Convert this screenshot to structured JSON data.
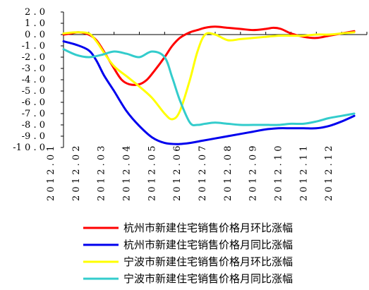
{
  "chart_data": {
    "type": "line",
    "x_categories": [
      "2012.01",
      "2012.02",
      "2012.03",
      "2012.04",
      "2012.05",
      "2012.06",
      "2012.07",
      "2012.08",
      "2012.09",
      "2012.10",
      "2012.11",
      "2012.12"
    ],
    "y_ticks": [
      "2.0",
      "1.0",
      "0.0",
      "-1.0",
      "-2.0",
      "-3.0",
      "-4.0",
      "-5.0",
      "-6.0",
      "-7.0",
      "-8.0",
      "-9.0",
      "-10.0"
    ],
    "ylim": [
      -10,
      2
    ],
    "grid": false,
    "legend_position": "bottom",
    "series": [
      {
        "name": "杭州市新建住宅销售价格月环比涨幅",
        "color": "#ff0000",
        "points": [
          [
            0,
            0.0
          ],
          [
            0.3,
            0.1
          ],
          [
            0.6,
            0.2
          ],
          [
            1.0,
            0.0
          ],
          [
            1.3,
            -0.5
          ],
          [
            1.6,
            -1.5
          ],
          [
            2.0,
            -3.0
          ],
          [
            2.3,
            -4.0
          ],
          [
            2.6,
            -4.4
          ],
          [
            3.0,
            -4.4
          ],
          [
            3.3,
            -4.0
          ],
          [
            3.6,
            -3.2
          ],
          [
            4.0,
            -2.0
          ],
          [
            4.3,
            -1.0
          ],
          [
            4.6,
            -0.3
          ],
          [
            5.0,
            0.2
          ],
          [
            5.3,
            0.4
          ],
          [
            5.6,
            0.6
          ],
          [
            6.0,
            0.7
          ],
          [
            6.5,
            0.6
          ],
          [
            7.0,
            0.5
          ],
          [
            7.5,
            0.4
          ],
          [
            8.0,
            0.5
          ],
          [
            8.3,
            0.6
          ],
          [
            8.6,
            0.5
          ],
          [
            9.0,
            0.1
          ],
          [
            9.5,
            -0.2
          ],
          [
            10.0,
            -0.3
          ],
          [
            10.5,
            -0.1
          ],
          [
            11.0,
            0.1
          ],
          [
            11.5,
            0.3
          ]
        ]
      },
      {
        "name": "杭州市新建住宅销售价格月同比涨幅",
        "color": "#0000ee",
        "points": [
          [
            0,
            -0.6
          ],
          [
            0.5,
            -0.9
          ],
          [
            1.0,
            -1.4
          ],
          [
            1.3,
            -2.3
          ],
          [
            1.6,
            -3.6
          ],
          [
            2.0,
            -5.0
          ],
          [
            2.5,
            -6.8
          ],
          [
            3.0,
            -8.1
          ],
          [
            3.5,
            -9.1
          ],
          [
            4.0,
            -9.6
          ],
          [
            4.5,
            -9.7
          ],
          [
            5.0,
            -9.6
          ],
          [
            5.5,
            -9.4
          ],
          [
            6.0,
            -9.2
          ],
          [
            6.5,
            -9.0
          ],
          [
            7.0,
            -8.8
          ],
          [
            7.5,
            -8.6
          ],
          [
            8.0,
            -8.4
          ],
          [
            8.5,
            -8.3
          ],
          [
            9.0,
            -8.3
          ],
          [
            9.5,
            -8.3
          ],
          [
            10.0,
            -8.3
          ],
          [
            10.5,
            -8.1
          ],
          [
            11.0,
            -7.7
          ],
          [
            11.5,
            -7.2
          ]
        ]
      },
      {
        "name": "宁波市新建住宅销售价格月环比涨幅",
        "color": "#ffff00",
        "points": [
          [
            0,
            0.1
          ],
          [
            0.5,
            0.2
          ],
          [
            1.0,
            0.1
          ],
          [
            1.3,
            -0.6
          ],
          [
            1.6,
            -1.6
          ],
          [
            2.0,
            -2.8
          ],
          [
            2.5,
            -3.7
          ],
          [
            3.0,
            -4.6
          ],
          [
            3.5,
            -5.6
          ],
          [
            4.0,
            -7.0
          ],
          [
            4.3,
            -7.5
          ],
          [
            4.6,
            -6.8
          ],
          [
            5.0,
            -4.0
          ],
          [
            5.3,
            -1.5
          ],
          [
            5.6,
            0.0
          ],
          [
            6.0,
            0.0
          ],
          [
            6.5,
            -0.5
          ],
          [
            7.0,
            -0.4
          ],
          [
            7.5,
            -0.3
          ],
          [
            8.0,
            -0.2
          ],
          [
            8.5,
            -0.1
          ],
          [
            9.0,
            -0.1
          ],
          [
            9.5,
            -0.1
          ],
          [
            10.0,
            0.0
          ],
          [
            10.5,
            0.0
          ],
          [
            11.0,
            0.1
          ],
          [
            11.5,
            0.2
          ]
        ]
      },
      {
        "name": "宁波市新建住宅销售价格月同比涨幅",
        "color": "#33cccc",
        "points": [
          [
            0,
            -1.3
          ],
          [
            0.5,
            -1.8
          ],
          [
            1.0,
            -2.0
          ],
          [
            1.5,
            -1.8
          ],
          [
            2.0,
            -1.5
          ],
          [
            2.5,
            -1.7
          ],
          [
            3.0,
            -2.0
          ],
          [
            3.5,
            -1.5
          ],
          [
            4.0,
            -2.0
          ],
          [
            4.3,
            -3.8
          ],
          [
            4.6,
            -5.8
          ],
          [
            5.0,
            -7.8
          ],
          [
            5.3,
            -8.0
          ],
          [
            5.6,
            -7.9
          ],
          [
            6.0,
            -7.8
          ],
          [
            6.5,
            -7.9
          ],
          [
            7.0,
            -8.0
          ],
          [
            7.5,
            -8.0
          ],
          [
            8.0,
            -8.0
          ],
          [
            8.5,
            -8.0
          ],
          [
            9.0,
            -7.9
          ],
          [
            9.5,
            -7.9
          ],
          [
            10.0,
            -7.7
          ],
          [
            10.5,
            -7.4
          ],
          [
            11.0,
            -7.2
          ],
          [
            11.5,
            -7.0
          ]
        ]
      }
    ]
  }
}
